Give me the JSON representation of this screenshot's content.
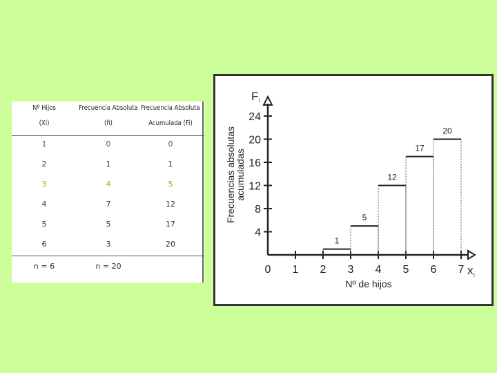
{
  "table": {
    "headers": [
      {
        "line1": "Nº Hijos",
        "line2": "(Xi)"
      },
      {
        "line1": "Frecuencia Absoluta",
        "line2": "(fi)"
      },
      {
        "line1": "Frecuencia Absoluta",
        "line2": "Acumulada (Fi)"
      }
    ],
    "rows": [
      [
        "1",
        "0",
        "0"
      ],
      [
        "2",
        "1",
        "1"
      ],
      [
        "3",
        "4",
        "5"
      ],
      [
        "4",
        "7",
        "12"
      ],
      [
        "5",
        "5",
        "17"
      ],
      [
        "6",
        "3",
        "20"
      ]
    ],
    "footer": [
      "n = 6",
      "n = 20",
      ""
    ],
    "row_colors": [
      "#3355aa",
      "#333333",
      "#99aa22",
      "#333333",
      "#333333",
      "#333333"
    ]
  },
  "chart_data": {
    "type": "line",
    "step": true,
    "xlabel": "Nº de hijos",
    "ylabel_line1": "Frecuencias absolutas",
    "ylabel_line2": "acumuladas",
    "y_axis_symbol": "F",
    "y_axis_subscript": "i",
    "x_axis_symbol": "x",
    "x_axis_subscript": "i",
    "x_ticks": [
      "0",
      "1",
      "2",
      "3",
      "4",
      "5",
      "6",
      "7"
    ],
    "y_ticks": [
      "4",
      "8",
      "12",
      "16",
      "20",
      "24"
    ],
    "xlim": [
      0,
      7
    ],
    "ylim": [
      0,
      24
    ],
    "steps": [
      {
        "x_start": 2,
        "x_end": 3,
        "value": 1
      },
      {
        "x_start": 3,
        "x_end": 4,
        "value": 5
      },
      {
        "x_start": 4,
        "x_end": 5,
        "value": 12
      },
      {
        "x_start": 5,
        "x_end": 6,
        "value": 17
      },
      {
        "x_start": 6,
        "x_end": 7,
        "value": 20
      }
    ]
  }
}
